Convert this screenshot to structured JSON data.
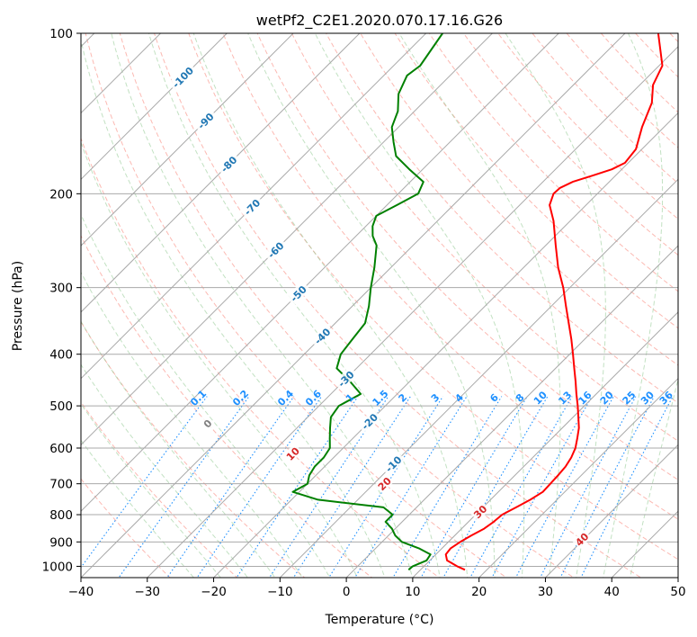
{
  "chart_data": {
    "type": "line",
    "subtype": "skew-t log-p diagram",
    "title": "wetPf2_C2E1.2020.070.17.16.G26",
    "xlabel": "Temperature (°C)",
    "ylabel": "Pressure (hPa)",
    "xlim": [
      -40,
      50
    ],
    "ylim": [
      1050,
      100
    ],
    "y_scale": "log",
    "x_ticks": [
      "−40",
      "−30",
      "−20",
      "−10",
      "0",
      "10",
      "20",
      "30",
      "40",
      "50"
    ],
    "x_tick_values": [
      -40,
      -30,
      -20,
      -10,
      0,
      10,
      20,
      30,
      40,
      50
    ],
    "y_ticks": [
      "100",
      "200",
      "300",
      "400",
      "500",
      "600",
      "700",
      "800",
      "900",
      "1000"
    ],
    "y_tick_values": [
      100,
      200,
      300,
      400,
      500,
      600,
      700,
      800,
      900,
      1000
    ],
    "grid": true,
    "legend": "none",
    "colors": {
      "temperature": "#ff0000",
      "dewpoint": "#008000",
      "isotherm": "#a9a9a9",
      "isobar": "#a9a9a9",
      "dry_adiabat": "#fa8072",
      "moist_adiabat": "#90c990",
      "mixing_ratio": "#1e90ff",
      "dry_adiabat_label": "#d62728",
      "isotherm_label": "#1f77b4",
      "mixing_label": "#1e90ff",
      "zero_label": "#808080"
    },
    "series": [
      {
        "key": "temperature",
        "points": [
          [
            1015,
            16.7
          ],
          [
            1000,
            15.0
          ],
          [
            975,
            12.6
          ],
          [
            950,
            11.5
          ],
          [
            925,
            11.3
          ],
          [
            900,
            11.8
          ],
          [
            875,
            12.5
          ],
          [
            850,
            13.4
          ],
          [
            825,
            13.8
          ],
          [
            800,
            14.0
          ],
          [
            775,
            15.0
          ],
          [
            750,
            16.0
          ],
          [
            725,
            16.7
          ],
          [
            700,
            16.6
          ],
          [
            675,
            16.5
          ],
          [
            650,
            16.3
          ],
          [
            625,
            15.8
          ],
          [
            600,
            15.0
          ],
          [
            575,
            13.8
          ],
          [
            550,
            12.5
          ],
          [
            525,
            10.8
          ],
          [
            500,
            9.0
          ],
          [
            475,
            7.0
          ],
          [
            450,
            5.0
          ],
          [
            425,
            2.8
          ],
          [
            400,
            0.5
          ],
          [
            375,
            -2.0
          ],
          [
            350,
            -4.8
          ],
          [
            325,
            -7.8
          ],
          [
            300,
            -11.0
          ],
          [
            275,
            -14.8
          ],
          [
            250,
            -18.5
          ],
          [
            225,
            -22.5
          ],
          [
            210,
            -25.5
          ],
          [
            200,
            -26.6
          ],
          [
            195,
            -26.5
          ],
          [
            190,
            -25.5
          ],
          [
            185,
            -23.5
          ],
          [
            180,
            -21.5
          ],
          [
            175,
            -20.5
          ],
          [
            165,
            -20.9
          ],
          [
            150,
            -23.3
          ],
          [
            135,
            -25.5
          ],
          [
            125,
            -28.0
          ],
          [
            115,
            -29.5
          ],
          [
            100,
            -35.0
          ]
        ]
      },
      {
        "key": "dewpoint",
        "points": [
          [
            1015,
            8.2
          ],
          [
            1000,
            8.3
          ],
          [
            975,
            9.5
          ],
          [
            950,
            9.2
          ],
          [
            925,
            6.5
          ],
          [
            900,
            3.0
          ],
          [
            875,
            1.0
          ],
          [
            850,
            -0.5
          ],
          [
            825,
            -2.5
          ],
          [
            800,
            -2.5
          ],
          [
            775,
            -5.0
          ],
          [
            750,
            -16.0
          ],
          [
            725,
            -21.0
          ],
          [
            700,
            -20.0
          ],
          [
            675,
            -21.0
          ],
          [
            650,
            -21.5
          ],
          [
            625,
            -21.5
          ],
          [
            600,
            -22.0
          ],
          [
            575,
            -23.5
          ],
          [
            550,
            -25.0
          ],
          [
            525,
            -26.5
          ],
          [
            500,
            -27.0
          ],
          [
            475,
            -25.5
          ],
          [
            450,
            -29.0
          ],
          [
            425,
            -33.0
          ],
          [
            400,
            -34.5
          ],
          [
            375,
            -35.0
          ],
          [
            350,
            -35.5
          ],
          [
            325,
            -37.5
          ],
          [
            300,
            -40.0
          ],
          [
            275,
            -42.5
          ],
          [
            250,
            -45.5
          ],
          [
            240,
            -47.5
          ],
          [
            230,
            -49.0
          ],
          [
            220,
            -50.0
          ],
          [
            210,
            -48.5
          ],
          [
            200,
            -47.0
          ],
          [
            190,
            -48.0
          ],
          [
            180,
            -52.0
          ],
          [
            170,
            -56.0
          ],
          [
            160,
            -58.5
          ],
          [
            150,
            -61.0
          ],
          [
            140,
            -62.5
          ],
          [
            130,
            -65.0
          ],
          [
            120,
            -66.5
          ],
          [
            115,
            -66.0
          ],
          [
            100,
            -67.5
          ]
        ]
      }
    ],
    "mixing_ratio_labels": [
      "0.1",
      "0.2",
      "0.4",
      "0.6",
      "1",
      "1.5",
      "2",
      "3",
      "4",
      "6",
      "8",
      "10",
      "13",
      "16",
      "20",
      "25",
      "30",
      "36"
    ],
    "mixing_ratio_values": [
      0.1,
      0.2,
      0.4,
      0.6,
      1,
      1.5,
      2,
      3,
      4,
      6,
      8,
      10,
      13,
      16,
      20,
      25,
      30,
      36
    ],
    "isotherm_labels": [
      "-100",
      "-90",
      "-80",
      "-70",
      "-60",
      "-50",
      "-40",
      "-30",
      "-20",
      "-10"
    ],
    "isotherm_values": [
      -100,
      -90,
      -80,
      -70,
      -60,
      -50,
      -40,
      -30,
      -20,
      -10
    ],
    "isotherm_label_pressures": [
      121,
      146,
      176,
      212,
      255,
      308,
      370,
      445,
      535,
      643
    ],
    "dry_adiabat_labels": [
      "0",
      "10",
      "20",
      "30",
      "40"
    ],
    "dry_adiabat_values": [
      0,
      10,
      20,
      30,
      40
    ]
  }
}
